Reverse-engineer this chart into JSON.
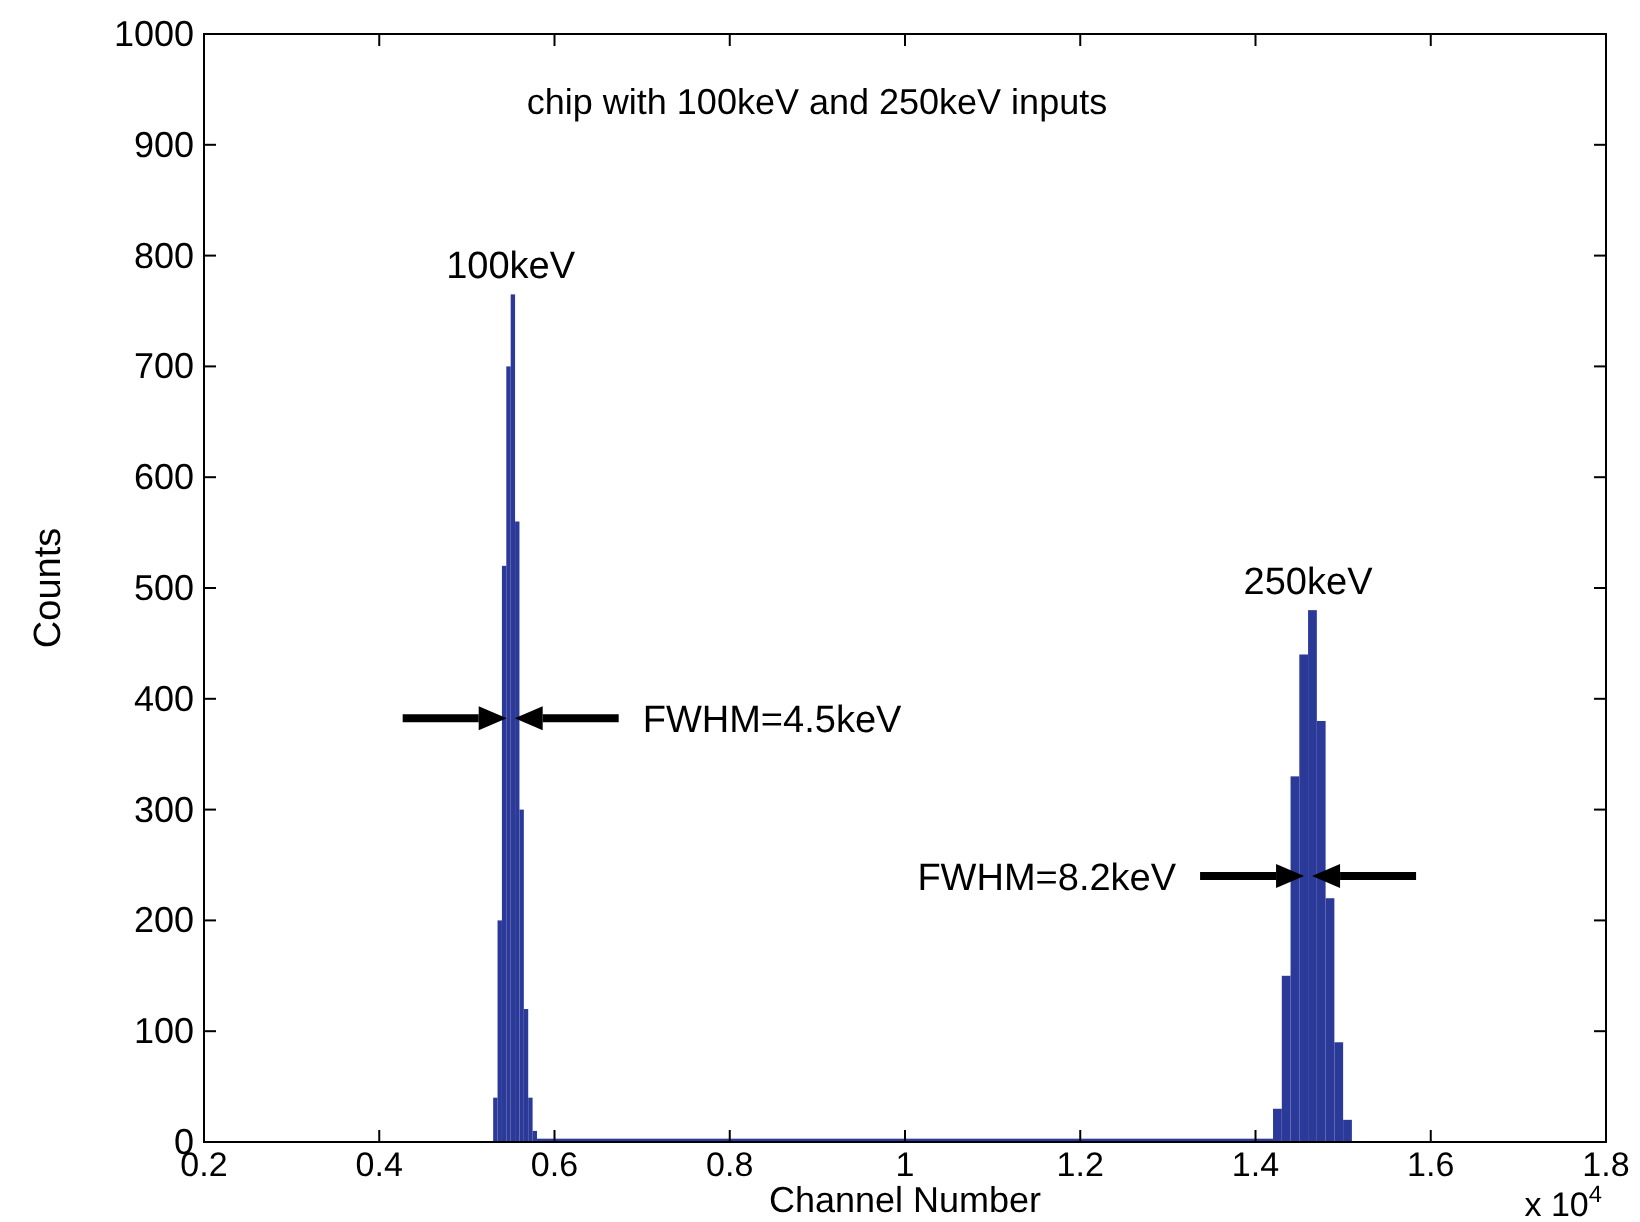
{
  "chart_data": {
    "type": "histogram",
    "title": "chip with 100keV and 250keV inputs",
    "xlabel": "Channel Number",
    "ylabel": "Counts",
    "bins": [
      0.53,
      0.535,
      0.54,
      0.545,
      0.55,
      0.555,
      0.56,
      0.565,
      0.57,
      0.575,
      0.58,
      1.42,
      1.43,
      1.44,
      1.45,
      1.46,
      1.47,
      1.48,
      1.49,
      1.5,
      1.51
    ],
    "values": [
      40,
      200,
      520,
      700,
      765,
      560,
      300,
      120,
      40,
      10,
      3,
      30,
      150,
      330,
      440,
      480,
      380,
      220,
      90,
      20
    ],
    "color": "#2b3a98",
    "xlim": [
      0.2,
      1.8
    ],
    "xticks": [
      0.2,
      0.4,
      0.6,
      0.8,
      1,
      1.2,
      1.4,
      1.6,
      1.8
    ],
    "ylim": [
      0,
      1000
    ],
    "yticks": [
      0,
      100,
      200,
      300,
      400,
      500,
      600,
      700,
      800,
      900,
      1000
    ],
    "grid": false,
    "annotations": [
      {
        "text": "100keV",
        "x": 0.55,
        "y": 765
      },
      {
        "text": "250keV",
        "x": 1.46,
        "y": 480
      },
      "FWHM=4.5keV",
      "FWHM=8.2keV",
      "x 10$^{4}$"
    ]
  }
}
